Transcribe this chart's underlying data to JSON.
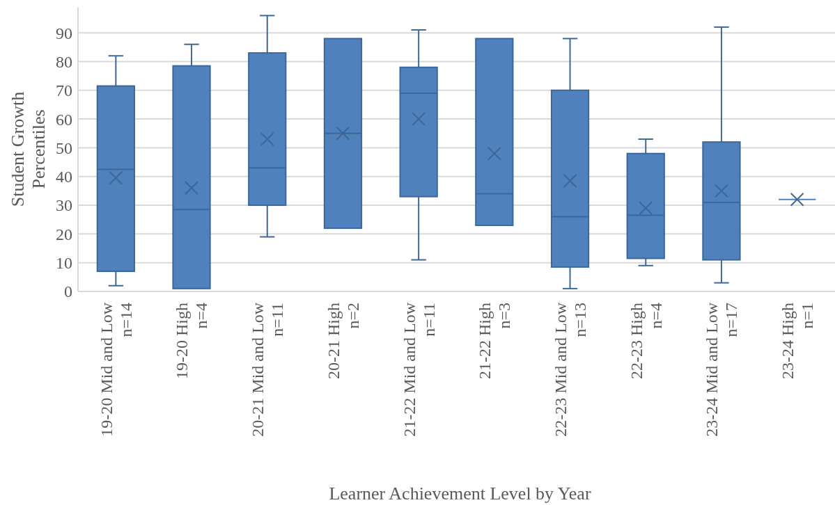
{
  "chart_data": {
    "type": "box",
    "xlabel": "Learner Achievement Level by Year",
    "ylabel": "Student Growth\nPercentiles",
    "categories": [
      "19-20 Mid and Low\nn=14",
      "19-20 High\nn=4",
      "20-21 Mid and Low\nn=11",
      "20-21 High\nn=2",
      "21-22 Mid and Low\nn=11",
      "21-22 High\nn=3",
      "22-23 Mid and Low\nn=13",
      "22-23 High\nn=4",
      "23-24 Mid and Low\nn=17",
      "23-24 High\nn=1"
    ],
    "color": "#4f81bd",
    "ylim": [
      0,
      99
    ],
    "yticks": [
      0,
      10,
      20,
      30,
      40,
      50,
      60,
      70,
      80,
      90
    ],
    "grid": "y",
    "marker": "cross",
    "boxes": [
      {
        "low": 2,
        "q1": 7,
        "median": 42.5,
        "q3": 71.5,
        "high": 82,
        "mean": 39.5
      },
      {
        "low": 1,
        "q1": 1,
        "median": 28.5,
        "q3": 78.5,
        "high": 86,
        "mean": 36
      },
      {
        "low": 19,
        "q1": 30,
        "median": 43,
        "q3": 83,
        "high": 96,
        "mean": 53
      },
      {
        "low": 22,
        "q1": 22,
        "median": 55,
        "q3": 88,
        "high": 88,
        "mean": 55
      },
      {
        "low": 11,
        "q1": 33,
        "median": 69,
        "q3": 78,
        "high": 91,
        "mean": 60
      },
      {
        "low": 23,
        "q1": 23,
        "median": 34,
        "q3": 88,
        "high": 88,
        "mean": 48
      },
      {
        "low": 1,
        "q1": 8.5,
        "median": 26,
        "q3": 70,
        "high": 88,
        "mean": 38.5
      },
      {
        "low": 9,
        "q1": 11.5,
        "median": 26.5,
        "q3": 48,
        "high": 53,
        "mean": 29
      },
      {
        "low": 3,
        "q1": 11,
        "median": 31,
        "q3": 52,
        "high": 92,
        "mean": 35
      },
      {
        "low": 32,
        "q1": 32,
        "median": 32,
        "q3": 32,
        "high": 32,
        "mean": 32
      }
    ]
  }
}
